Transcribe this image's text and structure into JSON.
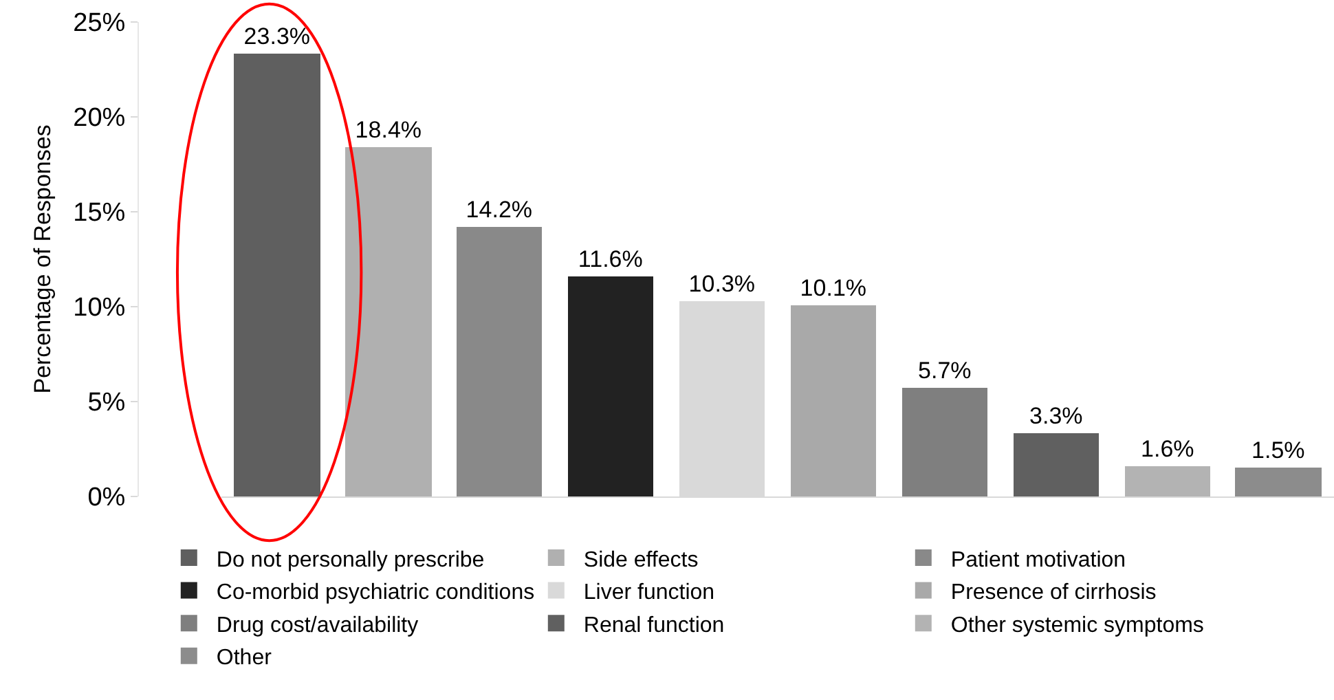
{
  "chart_data": {
    "type": "bar",
    "ylabel": "Percentage of Responses",
    "categories": [
      null,
      null,
      null,
      null,
      null,
      null,
      null,
      null,
      null,
      null
    ],
    "series": [
      {
        "name": "Do not personally prescribe",
        "color": "#5f5f5f",
        "values": [
          23.3,
          null,
          null,
          null,
          null,
          null,
          null,
          null,
          null,
          null
        ],
        "value_labels": [
          "23.3%",
          null,
          null,
          null,
          null,
          null,
          null,
          null,
          null,
          null
        ]
      },
      {
        "name": "Side effects",
        "color": "#b0b0b0",
        "values": [
          null,
          18.4,
          null,
          null,
          null,
          null,
          null,
          null,
          null,
          null
        ],
        "value_labels": [
          null,
          "18.4%",
          null,
          null,
          null,
          null,
          null,
          null,
          null,
          null
        ]
      },
      {
        "name": "Patient motivation",
        "color": "#898989",
        "values": [
          null,
          null,
          14.2,
          null,
          null,
          null,
          null,
          null,
          null,
          null
        ],
        "value_labels": [
          null,
          null,
          "14.2%",
          null,
          null,
          null,
          null,
          null,
          null,
          null
        ]
      },
      {
        "name": "Co-morbid psychiatric conditions",
        "color": "#222222",
        "values": [
          null,
          null,
          null,
          11.6,
          null,
          null,
          null,
          null,
          null,
          null
        ],
        "value_labels": [
          null,
          null,
          null,
          "11.6%",
          null,
          null,
          null,
          null,
          null,
          null
        ]
      },
      {
        "name": "Liver function",
        "color": "#d9d9d9",
        "values": [
          null,
          null,
          null,
          null,
          10.3,
          null,
          null,
          null,
          null,
          null
        ],
        "value_labels": [
          null,
          null,
          null,
          null,
          "10.3%",
          null,
          null,
          null,
          null,
          null
        ]
      },
      {
        "name": "Presence of cirrhosis",
        "color": "#a9a9a9",
        "values": [
          null,
          null,
          null,
          null,
          null,
          10.1,
          null,
          null,
          null,
          null
        ],
        "value_labels": [
          null,
          null,
          null,
          null,
          null,
          "10.1%",
          null,
          null,
          null,
          null
        ]
      },
      {
        "name": "Drug cost/availability",
        "color": "#7f7f7f",
        "values": [
          null,
          null,
          null,
          null,
          null,
          null,
          5.7,
          null,
          null,
          null
        ],
        "value_labels": [
          null,
          null,
          null,
          null,
          null,
          null,
          "5.7%",
          null,
          null,
          null
        ]
      },
      {
        "name": "Renal function",
        "color": "#606060",
        "values": [
          null,
          null,
          null,
          null,
          null,
          null,
          null,
          3.3,
          null,
          null
        ],
        "value_labels": [
          null,
          null,
          null,
          null,
          null,
          null,
          null,
          "3.3%",
          null,
          null
        ]
      },
      {
        "name": "Other systemic symptoms",
        "color": "#b3b3b3",
        "values": [
          null,
          null,
          null,
          null,
          null,
          null,
          null,
          null,
          1.6,
          null
        ],
        "value_labels": [
          null,
          null,
          null,
          null,
          null,
          null,
          null,
          null,
          "1.6%",
          null
        ]
      },
      {
        "name": "Other",
        "color": "#8c8c8c",
        "values": [
          null,
          null,
          null,
          null,
          null,
          null,
          null,
          null,
          null,
          1.5
        ],
        "value_labels": [
          null,
          null,
          null,
          null,
          null,
          null,
          null,
          null,
          null,
          "1.5%"
        ]
      }
    ],
    "ylim": [
      0,
      25
    ],
    "yticks": [
      {
        "value": 0,
        "label": "0%"
      },
      {
        "value": 5,
        "label": "5%"
      },
      {
        "value": 10,
        "label": "10%"
      },
      {
        "value": 15,
        "label": "15%"
      },
      {
        "value": 20,
        "label": "20%"
      },
      {
        "value": 25,
        "label": "25%"
      }
    ],
    "tick_labels": "y",
    "legend": "bottom"
  }
}
